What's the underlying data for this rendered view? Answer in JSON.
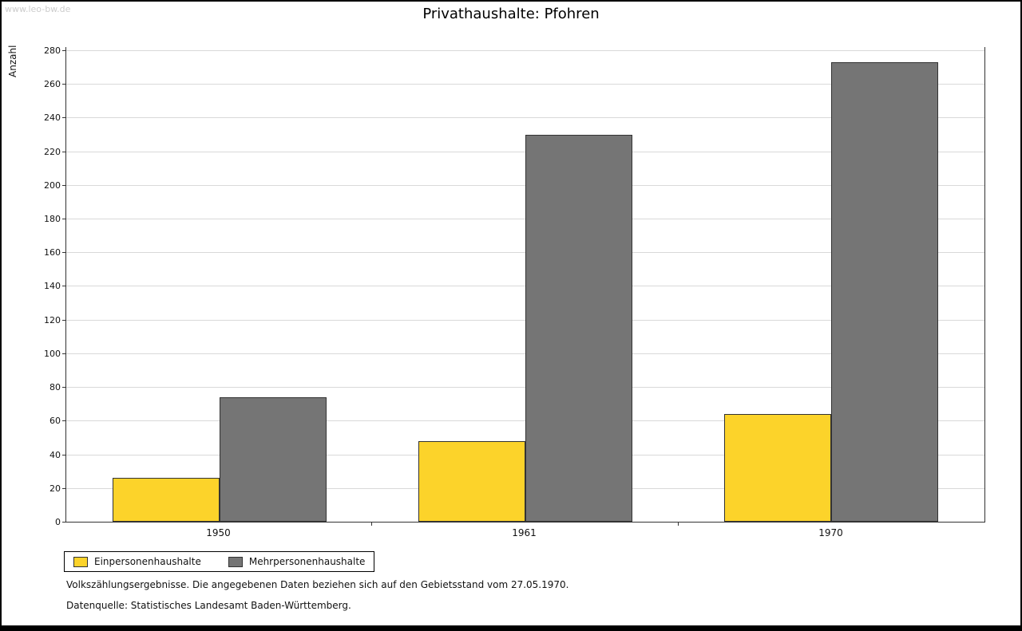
{
  "watermark": "www.leo-bw.de",
  "colors": {
    "axis": "#333333",
    "grid": "#d9d9d9",
    "bar_border": "#333333",
    "series_yellow": "#fcd32a",
    "series_gray": "#757575"
  },
  "chart_data": {
    "type": "bar",
    "title": "Privathaushalte: Pfohren",
    "ylabel": "Anzahl",
    "xlabel": "",
    "categories": [
      "1950",
      "1961",
      "1970"
    ],
    "series": [
      {
        "name": "Einpersonenhaushalte",
        "color": "#fcd32a",
        "values": [
          26,
          48,
          64
        ]
      },
      {
        "name": "Mehrpersonenhaushalte",
        "color": "#757575",
        "values": [
          74,
          230,
          273
        ]
      }
    ],
    "ylim": [
      0,
      280
    ],
    "ytick_step": 20,
    "grid": true,
    "legend_position": "bottom-left"
  },
  "footnotes": [
    "Volkszählungsergebnisse. Die angegebenen Daten beziehen sich auf den Gebietsstand vom 27.05.1970.",
    "Datenquelle: Statistisches Landesamt Baden-Württemberg."
  ]
}
